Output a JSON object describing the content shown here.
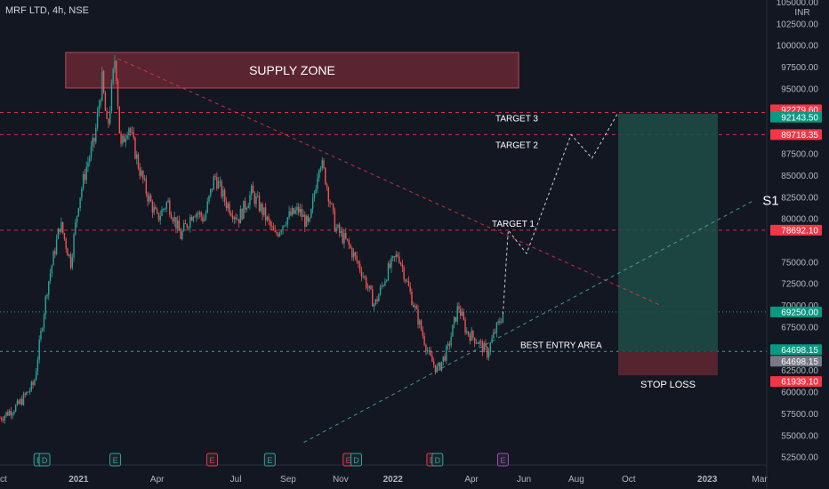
{
  "header": {
    "title": "MRF LTD, 4h, NSE"
  },
  "axis": {
    "currency": "INR",
    "y_ticks": [
      "105000.00",
      "102500.00",
      "100000.00",
      "97500.00",
      "95000.00",
      "87500.00",
      "85000.00",
      "82500.00",
      "80000.00",
      "75000.00",
      "72500.00",
      "70000.00",
      "67500.00",
      "62500.00",
      "60000.00",
      "57500.00",
      "55000.00",
      "52500.00"
    ],
    "y_tick_values": [
      105000,
      102500,
      100000,
      97500,
      95000,
      87500,
      85000,
      82500,
      80000,
      75000,
      72500,
      70000,
      67500,
      62500,
      60000,
      57500,
      55000,
      52500
    ],
    "x_ticks": [
      {
        "label": "Oct",
        "t": 0
      },
      {
        "label": "2021",
        "t": 3
      },
      {
        "label": "Apr",
        "t": 6
      },
      {
        "label": "Jul",
        "t": 9
      },
      {
        "label": "Sep",
        "t": 11
      },
      {
        "label": "Nov",
        "t": 13
      },
      {
        "label": "2022",
        "t": 15
      },
      {
        "label": "Apr",
        "t": 18
      },
      {
        "label": "Jun",
        "t": 20
      },
      {
        "label": "Aug",
        "t": 22
      },
      {
        "label": "Oct",
        "t": 24
      },
      {
        "label": "2023",
        "t": 27
      },
      {
        "label": "Mar",
        "t": 29
      }
    ]
  },
  "price_labels": [
    {
      "text": "92279.60",
      "value": 92279.6,
      "color": "#f23645"
    },
    {
      "text": "92143.50",
      "value": 92143.5,
      "color": "#089981"
    },
    {
      "text": "89718.35",
      "value": 89718.35,
      "color": "#f23645"
    },
    {
      "text": "78692.10",
      "value": 78692.1,
      "color": "#f23645"
    },
    {
      "text": "69250.00",
      "value": 69250.0,
      "color": "#089981"
    },
    {
      "text": "64698.15",
      "value": 64698.15,
      "color": "#089981"
    },
    {
      "text": "64698.15",
      "value": 64698.15,
      "color": "#787b86"
    },
    {
      "text": "61939.10",
      "value": 61939.1,
      "color": "#f23645"
    }
  ],
  "annotations": {
    "supply_zone": "SUPPLY ZONE",
    "target3": "TARGET 3",
    "target2": "TARGET 2",
    "target1": "TARGET 1",
    "best_entry": "BEST ENTRY AREA",
    "stop_loss": "STOP LOSS",
    "s1": "S1"
  },
  "events": [
    {
      "label": "E",
      "t": 1.5,
      "color": "#26a69a"
    },
    {
      "label": "D",
      "t": 1.7,
      "color": "#26a69a"
    },
    {
      "label": "E",
      "t": 4.4,
      "color": "#26a69a"
    },
    {
      "label": "E",
      "t": 8.1,
      "color": "#f23645"
    },
    {
      "label": "E",
      "t": 10.3,
      "color": "#26a69a"
    },
    {
      "label": "E",
      "t": 13.3,
      "color": "#f23645"
    },
    {
      "label": "D",
      "t": 13.6,
      "color": "#26a69a"
    },
    {
      "label": "E",
      "t": 16.5,
      "color": "#f23645"
    },
    {
      "label": "D",
      "t": 16.7,
      "color": "#26a69a"
    },
    {
      "label": "E",
      "t": 19.2,
      "color": "#ab47bc"
    }
  ],
  "colors": {
    "background": "#131722",
    "up": "#26a69a",
    "down": "#ef5350",
    "target_line": "#f23645",
    "entry_line": "#4db6ac",
    "profit_zone": "#1e4d47",
    "loss_zone": "#5a2530",
    "supply_zone": "#5a2530",
    "supply_border": "#b2495b"
  },
  "chart_data": {
    "type": "candlestick",
    "symbol": "MRF LTD",
    "interval": "4h",
    "exchange": "NSE",
    "ylim": [
      51500,
      105500
    ],
    "price_path": [
      [
        0,
        57000
      ],
      [
        0.7,
        58500
      ],
      [
        1.3,
        61000
      ],
      [
        1.8,
        72000
      ],
      [
        2.3,
        79500
      ],
      [
        2.7,
        75000
      ],
      [
        3.0,
        82000
      ],
      [
        3.3,
        86000
      ],
      [
        3.6,
        89000
      ],
      [
        3.9,
        96000
      ],
      [
        4.1,
        90000
      ],
      [
        4.4,
        99000
      ],
      [
        4.6,
        88000
      ],
      [
        4.9,
        91000
      ],
      [
        5.3,
        86000
      ],
      [
        5.6,
        83000
      ],
      [
        6.0,
        80000
      ],
      [
        6.4,
        82000
      ],
      [
        6.9,
        78000
      ],
      [
        7.4,
        81000
      ],
      [
        7.8,
        80000
      ],
      [
        8.2,
        85000
      ],
      [
        8.6,
        82000
      ],
      [
        9.1,
        80000
      ],
      [
        9.6,
        83000
      ],
      [
        10.0,
        81000
      ],
      [
        10.5,
        78000
      ],
      [
        10.9,
        80000
      ],
      [
        11.4,
        81000
      ],
      [
        11.8,
        79000
      ],
      [
        12.2,
        87000
      ],
      [
        12.4,
        85000
      ],
      [
        12.8,
        79000
      ],
      [
        13.3,
        77000
      ],
      [
        13.8,
        74000
      ],
      [
        14.3,
        70000
      ],
      [
        14.8,
        74000
      ],
      [
        15.2,
        76000
      ],
      [
        15.6,
        72000
      ],
      [
        16.0,
        68000
      ],
      [
        16.4,
        64000
      ],
      [
        16.7,
        62500
      ],
      [
        17.1,
        65000
      ],
      [
        17.5,
        70000
      ],
      [
        17.8,
        67000
      ],
      [
        18.2,
        66000
      ],
      [
        18.6,
        64500
      ],
      [
        18.9,
        67000
      ],
      [
        19.2,
        69000
      ]
    ],
    "levels": {
      "target3": 92279.6,
      "target2": 89718.35,
      "target1": 78692.1,
      "current": 69250.0,
      "entry": 64698.15,
      "stop_loss": 61939.1
    },
    "supply_zone": {
      "from": 95100,
      "to": 99200,
      "t_start": 2.2,
      "t_end": 19.8
    },
    "projection_path": [
      [
        19.2,
        69000
      ],
      [
        19.4,
        78692.1
      ],
      [
        20.1,
        76000
      ],
      [
        21.8,
        89718.35
      ],
      [
        22.6,
        87000
      ],
      [
        23.6,
        92279.6
      ]
    ],
    "position": {
      "t_start": 23.6,
      "t_end": 27.4,
      "entry": 64698.15,
      "target": 92143.5,
      "stop": 61939.1
    },
    "trendlines": [
      {
        "name": "resistance",
        "from": [
          4.5,
          98500
        ],
        "to": [
          25.3,
          69900
        ]
      },
      {
        "name": "S1",
        "from": [
          11.6,
          54200
        ],
        "to": [
          28.7,
          82000
        ]
      }
    ]
  }
}
